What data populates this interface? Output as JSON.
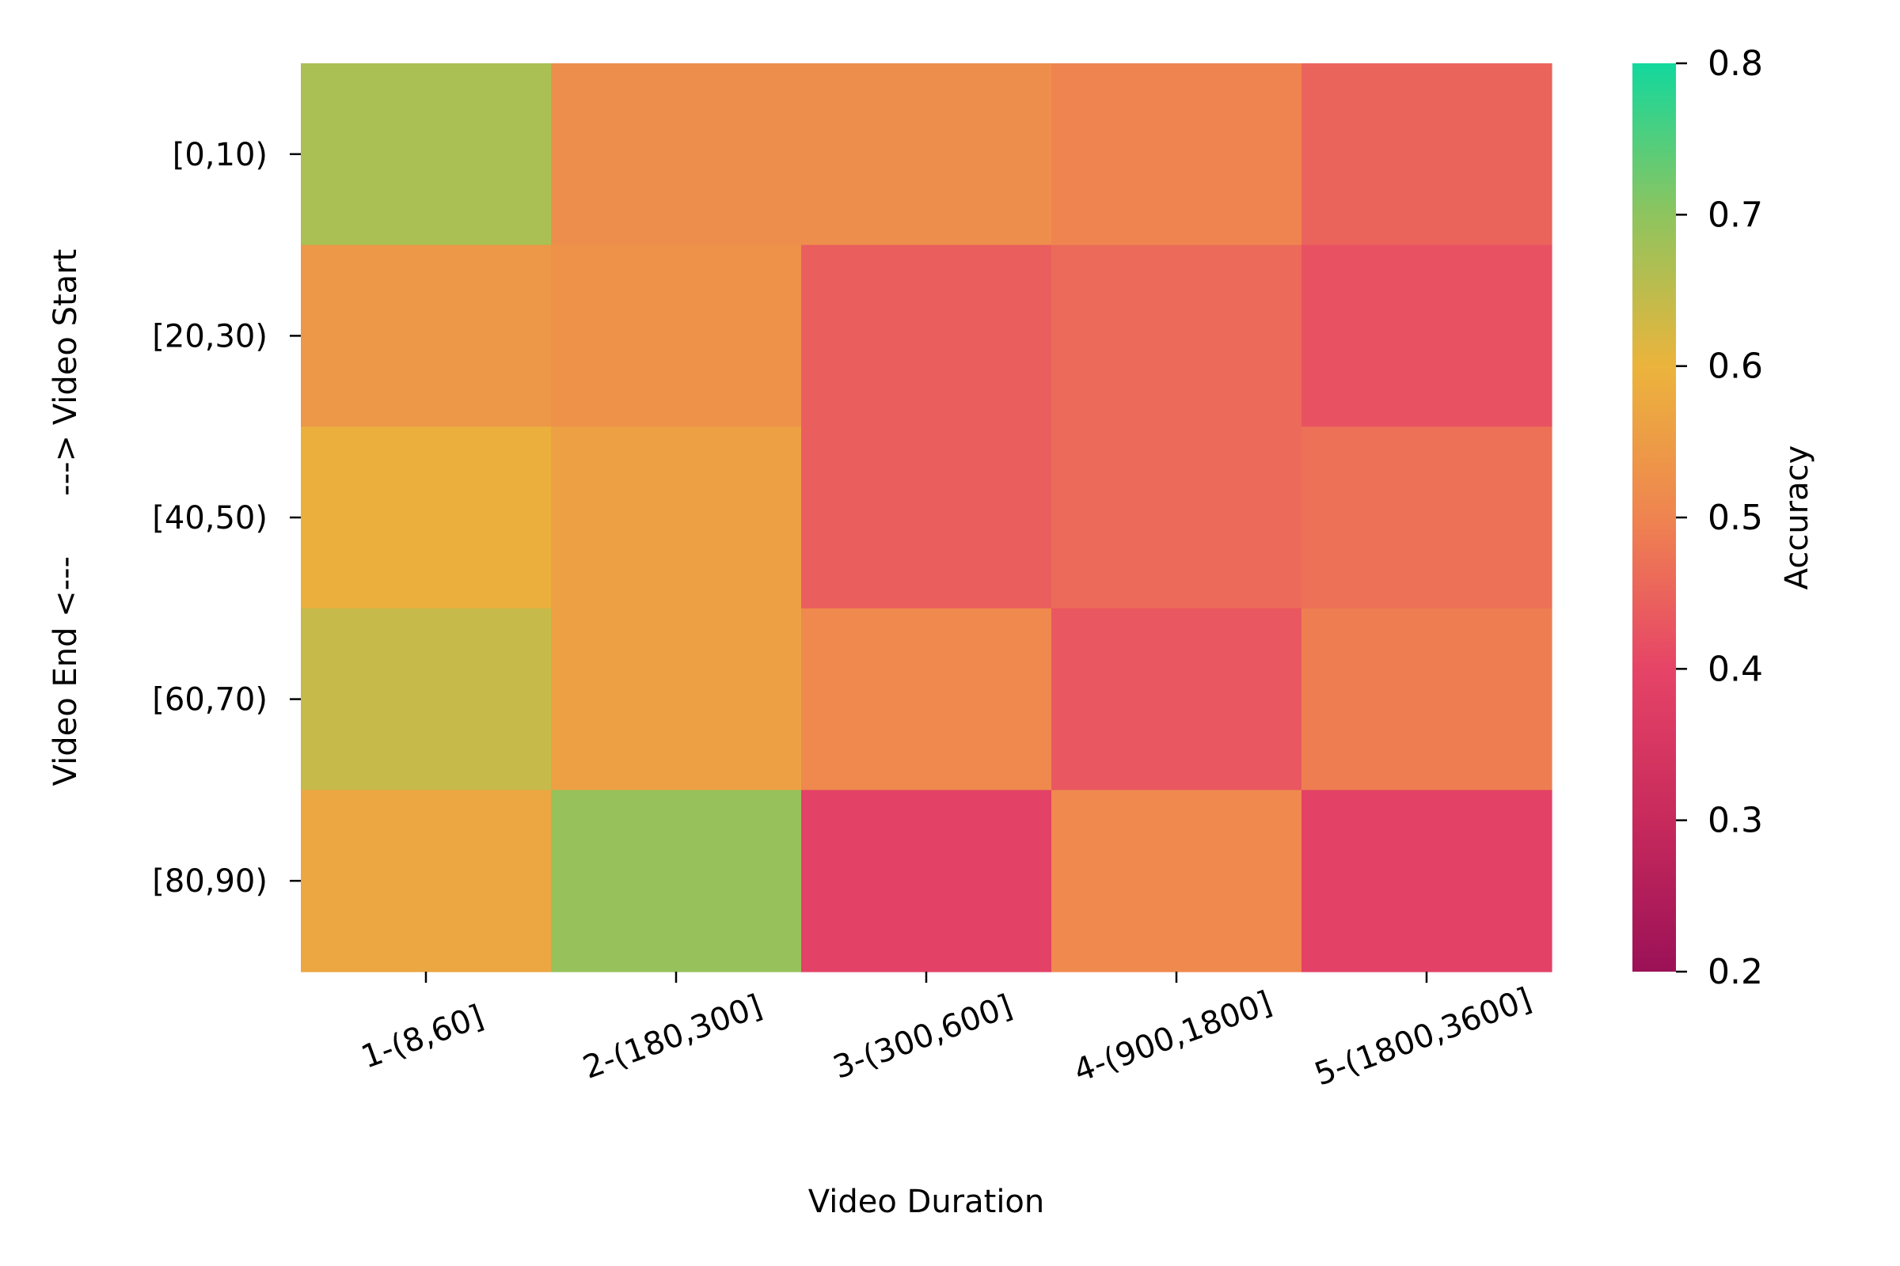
{
  "chart_data": {
    "type": "heatmap",
    "title": "",
    "xlabel": "Video Duration",
    "ylabel": "Video End <---      ---> Video Start",
    "x_categories": [
      "1-(8,60]",
      "2-(180,300]",
      "3-(300,600]",
      "4-(900,1800]",
      "5-(1800,3600]"
    ],
    "y_categories": [
      "[0,10)",
      "[20,30)",
      "[40,50)",
      "[60,70)",
      "[80,90)"
    ],
    "values": [
      [
        0.67,
        0.52,
        0.52,
        0.5,
        0.45
      ],
      [
        0.54,
        0.53,
        0.44,
        0.46,
        0.42
      ],
      [
        0.59,
        0.56,
        0.44,
        0.46,
        0.47
      ],
      [
        0.64,
        0.56,
        0.51,
        0.43,
        0.49
      ],
      [
        0.57,
        0.69,
        0.39,
        0.51,
        0.39
      ]
    ],
    "colorbar": {
      "label": "Accuracy",
      "range": [
        0.2,
        0.8
      ],
      "ticks": [
        "0.2",
        "0.3",
        "0.4",
        "0.5",
        "0.6",
        "0.7",
        "0.8"
      ],
      "colors": [
        "#9b1157",
        "#c72a5c",
        "#e64467",
        "#ef8450",
        "#ebb43c",
        "#8ec45e",
        "#12d89d"
      ]
    }
  }
}
